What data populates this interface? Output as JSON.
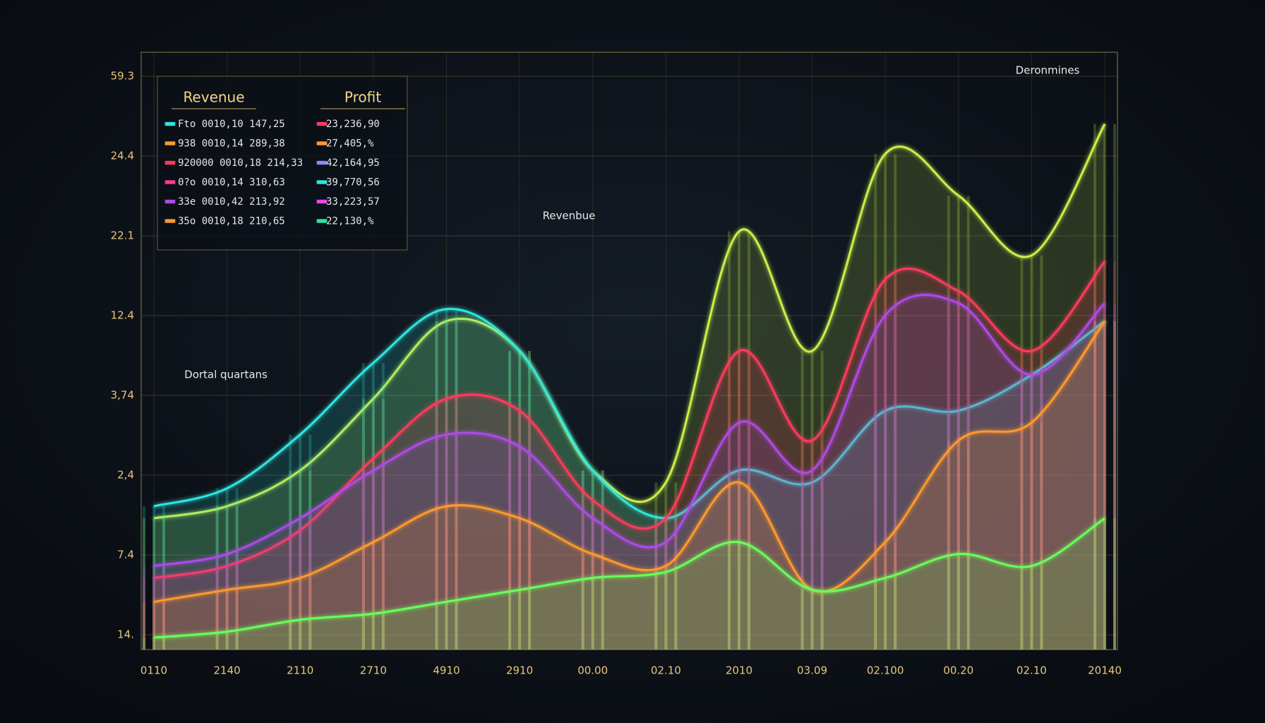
{
  "chart_data": {
    "type": "area",
    "y_labels": [
      "59.3",
      "24.4",
      "22.1",
      "12.4",
      "3,74",
      "2,4",
      "7.4",
      "14."
    ],
    "categories": [
      "0110",
      "2140",
      "2110",
      "2710",
      "4910",
      "2910",
      "00.00",
      "02.10",
      "2010",
      "03.09",
      "02.100",
      "00.20",
      "02.10",
      "20140"
    ],
    "ylim": [
      0,
      100
    ],
    "series": [
      {
        "color": "#c8f04a",
        "values": [
          22,
          24,
          30,
          42,
          55,
          50,
          30,
          28,
          70,
          50,
          83,
          76,
          66,
          88
        ]
      },
      {
        "color": "#2ee6e0",
        "values": [
          24,
          27,
          36,
          48,
          57,
          50,
          30,
          22,
          30,
          28,
          40,
          40,
          46,
          55
        ]
      },
      {
        "color": "#ff3b5c",
        "values": [
          12,
          14,
          20,
          32,
          42,
          40,
          25,
          22,
          50,
          35,
          62,
          60,
          50,
          65
        ]
      },
      {
        "color": "#b04ae8",
        "values": [
          14,
          16,
          22,
          30,
          36,
          34,
          22,
          18,
          38,
          30,
          56,
          58,
          46,
          58
        ]
      },
      {
        "color": "#ff9a2a",
        "values": [
          8,
          10,
          12,
          18,
          24,
          22,
          16,
          14,
          28,
          10,
          18,
          35,
          38,
          55
        ]
      },
      {
        "color": "#6bff5a",
        "values": [
          2,
          3,
          5,
          6,
          8,
          10,
          12,
          13,
          18,
          10,
          12,
          16,
          14,
          22
        ]
      }
    ],
    "legend": [
      {
        "title": "Revenue",
        "entries": [
          {
            "color": "#2ee6e0",
            "text": "Fto 0010,10  147,25"
          },
          {
            "color": "#ff9a2a",
            "text": "938 0010,14  289,38"
          },
          {
            "color": "#ff3b5c",
            "text": "920000 0010,18 214,33"
          },
          {
            "color": "#ff3b8c",
            "text": "0?o 0010,14  310,63"
          },
          {
            "color": "#b04ae8",
            "text": "33e 0010,42  213,92"
          },
          {
            "color": "#ff9a2a",
            "text": "35o 0010,18  210,65"
          }
        ]
      },
      {
        "title": "Profit",
        "entries": [
          {
            "color": "#ff3b5c",
            "text": "23,236,90"
          },
          {
            "color": "#ff9a2a",
            "text": "27,405,%"
          },
          {
            "color": "#8a8aff",
            "text": "42,164,95"
          },
          {
            "color": "#2ee6e0",
            "text": "39,770,56"
          },
          {
            "color": "#e84ae8",
            "text": "33,223,57"
          },
          {
            "color": "#2ee6a0",
            "text": "22,130,%"
          }
        ]
      }
    ],
    "annotations": [
      "Revenbue",
      "Dortal quartans",
      "Deronmines"
    ]
  }
}
